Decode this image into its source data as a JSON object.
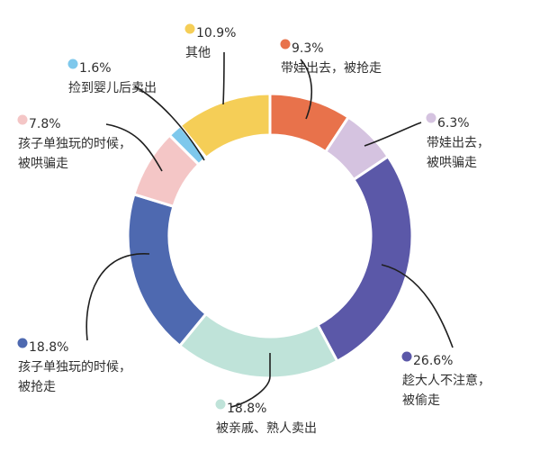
{
  "chart_data": {
    "type": "pie",
    "variant": "donut",
    "start_angle_deg": 0,
    "direction": "clockwise",
    "labels_text_color": "#2f2f2f",
    "leader_color": "#1f1f1f",
    "slices": [
      {
        "pct_label": "9.3%",
        "value": 9.3,
        "lines": [
          "带娃出去，被抢走"
        ],
        "color": "#E8724B"
      },
      {
        "pct_label": "6.3%",
        "value": 6.3,
        "lines": [
          "带娃出去，",
          "被哄骗走"
        ],
        "color": "#D5C3E0"
      },
      {
        "pct_label": "26.6%",
        "value": 26.6,
        "lines": [
          "趁大人不注意，",
          "被偷走"
        ],
        "color": "#5B58A8"
      },
      {
        "pct_label": "18.8%",
        "value": 18.8,
        "lines": [
          "被亲戚、熟人卖出"
        ],
        "color": "#BFE3D9"
      },
      {
        "pct_label": "18.8%",
        "value": 18.8,
        "lines": [
          "孩子单独玩的时候，",
          "被抢走"
        ],
        "color": "#4E69B0"
      },
      {
        "pct_label": "7.8%",
        "value": 7.8,
        "lines": [
          "孩子单独玩的时候，",
          "被哄骗走"
        ],
        "color": "#F4C6C6"
      },
      {
        "pct_label": "1.6%",
        "value": 1.6,
        "lines": [
          "捡到婴儿后卖出"
        ],
        "color": "#7EC8EC"
      },
      {
        "pct_label": "10.9%",
        "value": 10.9,
        "lines": [
          "其他"
        ],
        "color": "#F5CE57"
      }
    ]
  }
}
